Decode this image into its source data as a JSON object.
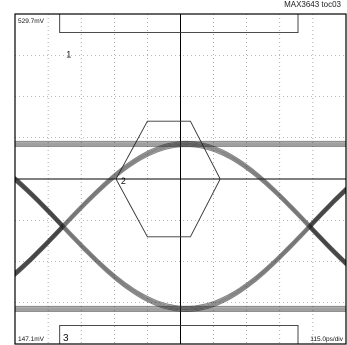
{
  "figure_id": "MAX3643 toc03",
  "chart_data": {
    "type": "line",
    "title": "",
    "xlabel": "",
    "ylabel": "",
    "top_voltage": "529.7mV",
    "bottom_voltage": "147.1mV",
    "timebase": "115.0ps/div",
    "markers": [
      "1",
      "2",
      "3"
    ],
    "grid_divisions": {
      "x": 10,
      "y": 8
    },
    "grid": true,
    "eye": {
      "high_level_div": 4.85,
      "low_level_div": 0.85,
      "crossings_div": [
        1.45,
        8.9
      ],
      "mask_hexagon_div": [
        [
          3.05,
          4.0
        ],
        [
          4.0,
          5.4
        ],
        [
          5.3,
          5.4
        ],
        [
          6.2,
          4.0
        ],
        [
          5.3,
          2.6
        ],
        [
          4.0,
          2.6
        ]
      ]
    }
  }
}
